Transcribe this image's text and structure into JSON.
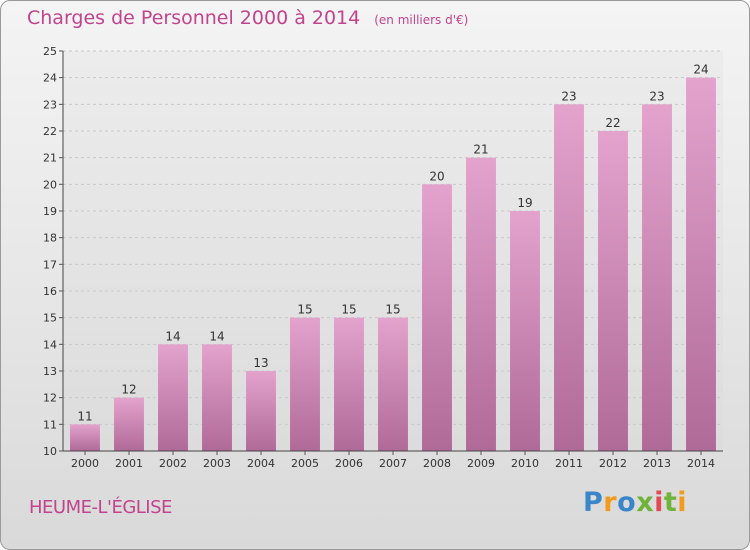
{
  "header": {
    "title": "Charges de Personnel 2000 à 2014",
    "subtitle": "(en milliers d'€)"
  },
  "footer": {
    "commune": "HEUME-L'ÉGLISE",
    "brand": [
      "P",
      "r",
      "o",
      "x",
      "i",
      "t",
      "i"
    ],
    "brand_colors": [
      "#3a86c8",
      "#f19a1c",
      "#3a86c8",
      "#6fb33a",
      "#e24b55",
      "#6fb33a",
      "#f19a1c"
    ]
  },
  "colors": {
    "bar_top": "#e3a3cd",
    "bar_bottom": "#b06a98",
    "title": "#c2448c",
    "grid": "#c9c9c9"
  },
  "chart_data": {
    "type": "bar",
    "categories": [
      "2000",
      "2001",
      "2002",
      "2003",
      "2004",
      "2005",
      "2006",
      "2007",
      "2008",
      "2009",
      "2010",
      "2011",
      "2012",
      "2013",
      "2014"
    ],
    "values": [
      11,
      12,
      14,
      14,
      13,
      15,
      15,
      15,
      20,
      21,
      19,
      23,
      22,
      23,
      24
    ],
    "data_labels": [
      "11",
      "12",
      "14",
      "14",
      "13",
      "15",
      "15",
      "15",
      "20",
      "21",
      "19",
      "23",
      "22",
      "23",
      "24"
    ],
    "y_ticks": [
      "10",
      "11",
      "12",
      "13",
      "14",
      "15",
      "16",
      "17",
      "18",
      "19",
      "20",
      "21",
      "22",
      "23",
      "24",
      "25"
    ],
    "ylim": [
      10,
      25
    ],
    "grid": true,
    "legend": "none"
  }
}
